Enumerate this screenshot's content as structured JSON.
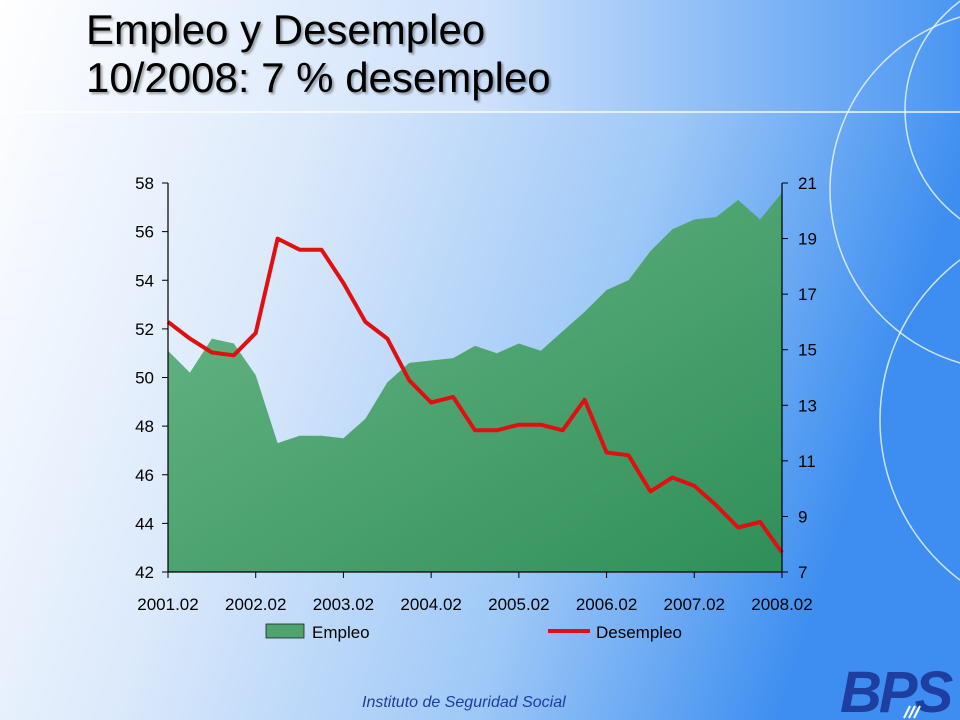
{
  "slide": {
    "title_line1": "Empleo y Desempleo",
    "title_line2": "10/2008: 7 % desempleo",
    "footer": "Instituto de Seguridad Social",
    "logo_text": "BPS"
  },
  "colors": {
    "empleo_fill": "#4fa36f",
    "desempleo_line": "#e01010",
    "background_light": "#e8f1fc",
    "background_dark": "#3d8ef0"
  },
  "chart_data": {
    "type": "area+line",
    "x_tick_labels": [
      "2001.02",
      "2002.02",
      "2003.02",
      "2004.02",
      "2005.02",
      "2006.02",
      "2007.02",
      "2008.02"
    ],
    "y_left": {
      "min": 42,
      "max": 58,
      "ticks": [
        42,
        44,
        46,
        48,
        50,
        52,
        54,
        56,
        58
      ]
    },
    "y_right": {
      "min": 7,
      "max": 21,
      "ticks": [
        7,
        9,
        11,
        13,
        15,
        17,
        19,
        21
      ]
    },
    "grid": false,
    "legend_position": "bottom",
    "series": [
      {
        "name": "Empleo",
        "kind": "area",
        "axis": "left",
        "values": [
          51.1,
          50.2,
          51.6,
          51.4,
          50.1,
          47.3,
          47.6,
          47.6,
          47.5,
          48.3,
          49.8,
          50.6,
          50.7,
          50.8,
          51.3,
          51.0,
          51.4,
          51.1,
          51.9,
          52.7,
          53.6,
          54.0,
          55.2,
          56.1,
          56.5,
          56.6,
          57.3,
          56.5,
          57.6
        ]
      },
      {
        "name": "Desempleo",
        "kind": "line",
        "axis": "right",
        "values": [
          16.0,
          15.4,
          14.9,
          14.8,
          15.6,
          19.0,
          18.6,
          18.6,
          17.4,
          16.0,
          15.4,
          13.9,
          13.1,
          13.3,
          12.1,
          12.1,
          12.3,
          12.3,
          12.1,
          13.2,
          11.3,
          11.2,
          9.9,
          10.4,
          10.1,
          9.4,
          8.6,
          8.8,
          7.7
        ]
      }
    ]
  }
}
